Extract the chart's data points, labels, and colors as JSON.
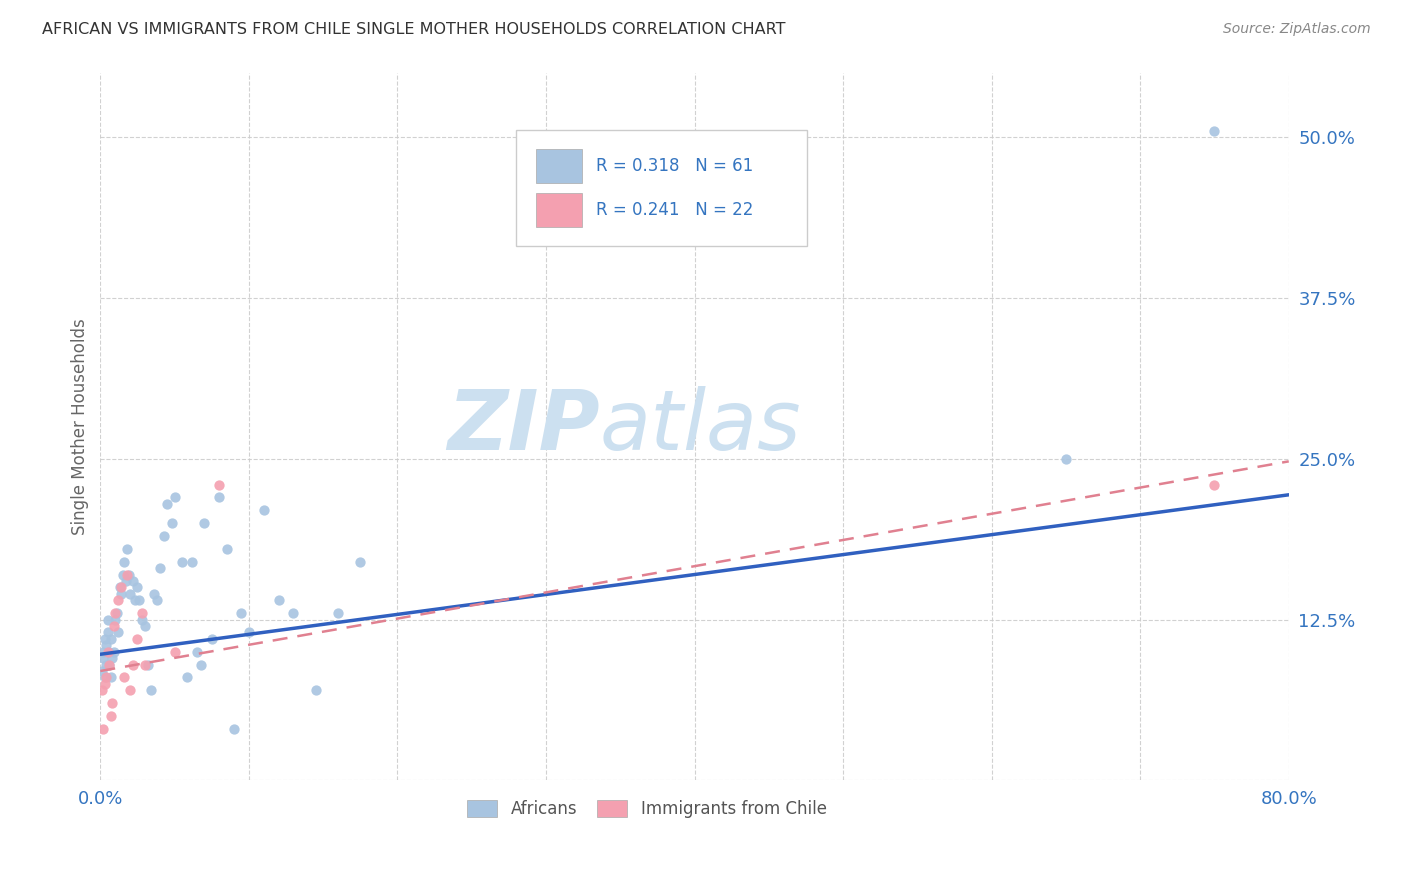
{
  "title": "AFRICAN VS IMMIGRANTS FROM CHILE SINGLE MOTHER HOUSEHOLDS CORRELATION CHART",
  "source": "Source: ZipAtlas.com",
  "ylabel": "Single Mother Households",
  "xlim": [
    0.0,
    0.8
  ],
  "ylim": [
    0.0,
    0.55
  ],
  "ytick_vals": [
    0.0,
    0.125,
    0.25,
    0.375,
    0.5
  ],
  "ytick_labels": [
    "",
    "12.5%",
    "25.0%",
    "37.5%",
    "50.0%"
  ],
  "xtick_vals": [
    0.0,
    0.1,
    0.2,
    0.3,
    0.4,
    0.5,
    0.6,
    0.7,
    0.8
  ],
  "xtick_labels": [
    "0.0%",
    "",
    "",
    "",
    "",
    "",
    "",
    "",
    "80.0%"
  ],
  "africans_R": 0.318,
  "africans_N": 61,
  "chile_R": 0.241,
  "chile_N": 22,
  "africans_color": "#a8c4e0",
  "chile_color": "#f4a0b0",
  "trendline_african_color": "#3060c0",
  "trendline_chile_color": "#e08090",
  "watermark_color": "#cce0f0",
  "africans_x": [
    0.001,
    0.002,
    0.002,
    0.003,
    0.003,
    0.004,
    0.004,
    0.005,
    0.005,
    0.006,
    0.006,
    0.007,
    0.007,
    0.008,
    0.009,
    0.01,
    0.011,
    0.012,
    0.013,
    0.014,
    0.015,
    0.016,
    0.017,
    0.018,
    0.019,
    0.02,
    0.022,
    0.023,
    0.025,
    0.026,
    0.028,
    0.03,
    0.032,
    0.034,
    0.036,
    0.038,
    0.04,
    0.043,
    0.045,
    0.048,
    0.05,
    0.055,
    0.058,
    0.062,
    0.065,
    0.068,
    0.07,
    0.075,
    0.08,
    0.085,
    0.09,
    0.095,
    0.1,
    0.11,
    0.12,
    0.13,
    0.145,
    0.16,
    0.175,
    0.65,
    0.75
  ],
  "africans_y": [
    0.085,
    0.095,
    0.1,
    0.08,
    0.11,
    0.09,
    0.105,
    0.115,
    0.125,
    0.09,
    0.1,
    0.08,
    0.11,
    0.095,
    0.1,
    0.125,
    0.13,
    0.115,
    0.15,
    0.145,
    0.16,
    0.17,
    0.155,
    0.18,
    0.16,
    0.145,
    0.155,
    0.14,
    0.15,
    0.14,
    0.125,
    0.12,
    0.09,
    0.07,
    0.145,
    0.14,
    0.165,
    0.19,
    0.215,
    0.2,
    0.22,
    0.17,
    0.08,
    0.17,
    0.1,
    0.09,
    0.2,
    0.11,
    0.22,
    0.18,
    0.04,
    0.13,
    0.115,
    0.21,
    0.14,
    0.13,
    0.07,
    0.13,
    0.17,
    0.25,
    0.505
  ],
  "chile_x": [
    0.001,
    0.002,
    0.003,
    0.004,
    0.005,
    0.006,
    0.007,
    0.008,
    0.009,
    0.01,
    0.012,
    0.014,
    0.016,
    0.018,
    0.02,
    0.022,
    0.025,
    0.028,
    0.03,
    0.05,
    0.08,
    0.75
  ],
  "chile_y": [
    0.07,
    0.04,
    0.075,
    0.08,
    0.1,
    0.09,
    0.05,
    0.06,
    0.12,
    0.13,
    0.14,
    0.15,
    0.08,
    0.16,
    0.07,
    0.09,
    0.11,
    0.13,
    0.09,
    0.1,
    0.23,
    0.23
  ],
  "african_trend_x0": 0.0,
  "african_trend_y0": 0.098,
  "african_trend_x1": 0.8,
  "african_trend_y1": 0.222,
  "chile_trend_x0": 0.0,
  "chile_trend_y0": 0.085,
  "chile_trend_x1": 0.8,
  "chile_trend_y1": 0.248
}
